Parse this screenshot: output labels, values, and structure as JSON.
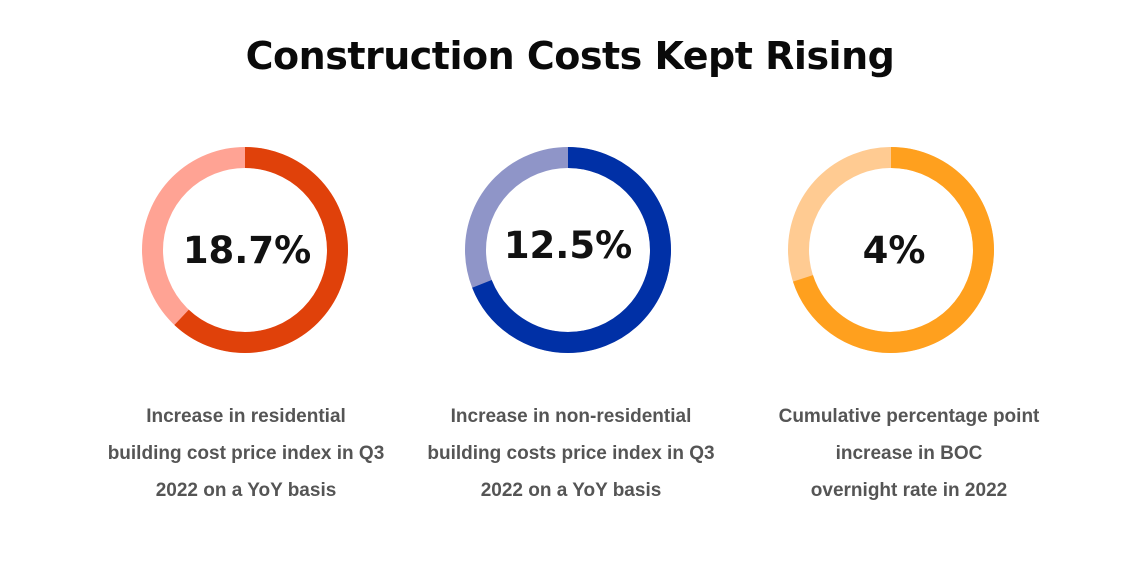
{
  "title": "Construction Costs Kept Rising",
  "chart_data": [
    {
      "type": "donut",
      "value_label": "18.7%",
      "caption_lines": [
        "Increase in residential",
        "building cost price index in Q3",
        "2022 on a YoY basis"
      ],
      "highlight_fraction": 0.62,
      "colors": {
        "highlight": "#e0410a",
        "remainder": "#ffa394"
      }
    },
    {
      "type": "donut",
      "value_label": "12.5%",
      "caption_lines": [
        "Increase in non-residential",
        "building costs price index in Q3",
        "2022 on a YoY basis"
      ],
      "highlight_fraction": 0.69,
      "colors": {
        "highlight": "#0030a6",
        "remainder": "#8f95c8"
      }
    },
    {
      "type": "donut",
      "value_label": "4%",
      "caption_lines": [
        "Cumulative percentage point",
        "increase in BOC",
        "overnight rate in 2022"
      ],
      "highlight_fraction": 0.7,
      "colors": {
        "highlight": "#ffa01e",
        "remainder": "#ffcb92"
      }
    }
  ]
}
